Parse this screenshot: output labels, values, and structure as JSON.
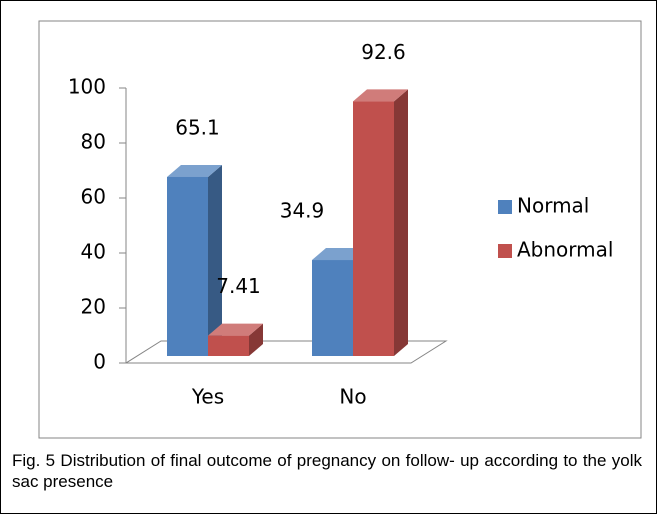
{
  "chart_data": {
    "type": "bar3d",
    "categories": [
      "Yes",
      "No"
    ],
    "series": [
      {
        "name": "Normal",
        "color": "#4f81bd",
        "values": [
          65.1,
          34.9
        ]
      },
      {
        "name": "Abnormal",
        "color": "#c0504d",
        "values": [
          7.41,
          92.6
        ]
      }
    ],
    "ylim": [
      0,
      100
    ],
    "yticks": [
      0,
      20,
      40,
      60,
      80,
      100
    ],
    "grid": false,
    "legend": "right",
    "caption": "Fig. 5 Distribution of final outcome of pregnancy on follow- up according to the yolk sac presence"
  }
}
